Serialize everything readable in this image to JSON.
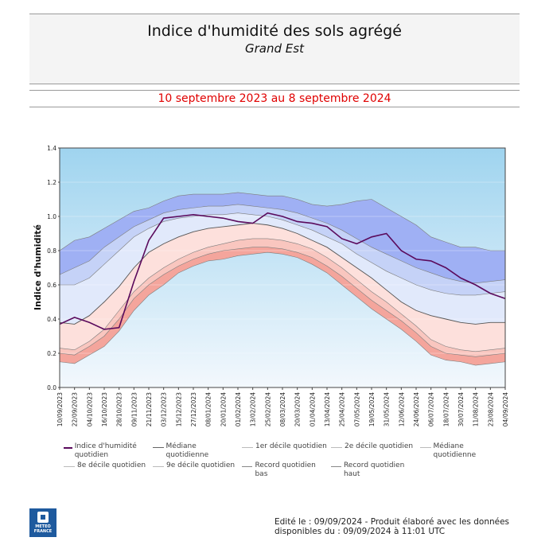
{
  "header": {
    "title": "Indice d'humidité des sols agrégé",
    "subtitle": "Grand Est",
    "period": "10 septembre 2023 au 8 septembre 2024"
  },
  "footer": {
    "line1": "Edité le : 09/09/2024 - Produit élaboré avec les données",
    "line2": "disponibles du : 09/09/2024 à 11:01 UTC"
  },
  "logo": {
    "text": "METEO FRANCE"
  },
  "colors": {
    "sky_top": "#9fd4ef",
    "sky_bottom": "#f2f7fc",
    "band_outer_blue": "#9fb0f4",
    "band_inner_blue": "#c5d2f7",
    "band_pale_blue": "#e1e9fb",
    "band_pale_red": "#fde0dc",
    "band_mid_red": "#f9c6bf",
    "band_outer_red": "#f4a59c",
    "index_line": "#5a0a5c",
    "decile_line": "#7d7d7d"
  },
  "legend": [
    {
      "label": "Indice d'humidité quotidien",
      "color": "#5a0a5c"
    },
    {
      "label": "Médiane quotidienne",
      "color": "#666666"
    },
    {
      "label": "1er décile quotidien",
      "color": "#bbbbbb"
    },
    {
      "label": "2e décile quotidien",
      "color": "#bbbbbb"
    },
    {
      "label": "Médiane quotidienne",
      "color": "#bbbbbb"
    },
    {
      "label": "8e décile quotidien",
      "color": "#bbbbbb"
    },
    {
      "label": "9e décile quotidien",
      "color": "#bbbbbb"
    },
    {
      "label": "Record quotidien bas",
      "color": "#888888"
    },
    {
      "label": "Record quotidien haut",
      "color": "#888888"
    }
  ],
  "chart_data": {
    "type": "area",
    "ylabel": "Indice d'humidité",
    "xlabel": "",
    "ylim": [
      0.0,
      1.4
    ],
    "yticks": [
      "0.0",
      "0.2",
      "0.4",
      "0.6",
      "0.8",
      "1.0",
      "1.2",
      "1.4"
    ],
    "x_tick_labels": [
      "10/09/2023",
      "22/09/2023",
      "04/10/2023",
      "16/10/2023",
      "28/10/2023",
      "09/11/2023",
      "21/11/2023",
      "03/12/2023",
      "15/12/2023",
      "27/12/2023",
      "08/01/2024",
      "20/01/2024",
      "01/02/2024",
      "13/02/2024",
      "25/02/2024",
      "08/03/2024",
      "20/03/2024",
      "01/04/2024",
      "13/04/2024",
      "25/04/2024",
      "07/05/2024",
      "19/05/2024",
      "31/05/2024",
      "12/06/2024",
      "24/06/2024",
      "06/07/2024",
      "18/07/2024",
      "30/07/2024",
      "11/08/2024",
      "23/08/2024",
      "04/09/2024"
    ],
    "grid": true,
    "x": [
      "10/09/2023",
      "22/09/2023",
      "04/10/2023",
      "16/10/2023",
      "28/10/2023",
      "09/11/2023",
      "21/11/2023",
      "03/12/2023",
      "15/12/2023",
      "27/12/2023",
      "08/01/2024",
      "20/01/2024",
      "01/02/2024",
      "13/02/2024",
      "25/02/2024",
      "08/03/2024",
      "20/03/2024",
      "01/04/2024",
      "13/04/2024",
      "25/04/2024",
      "07/05/2024",
      "19/05/2024",
      "31/05/2024",
      "12/06/2024",
      "24/06/2024",
      "06/07/2024",
      "18/07/2024",
      "30/07/2024",
      "11/08/2024",
      "23/08/2024",
      "04/09/2024"
    ],
    "series": [
      {
        "name": "Record quotidien bas",
        "values": [
          0.15,
          0.14,
          0.19,
          0.24,
          0.33,
          0.45,
          0.54,
          0.6,
          0.67,
          0.71,
          0.74,
          0.75,
          0.77,
          0.78,
          0.79,
          0.78,
          0.76,
          0.72,
          0.67,
          0.6,
          0.53,
          0.46,
          0.4,
          0.34,
          0.27,
          0.19,
          0.16,
          0.15,
          0.13,
          0.14,
          0.15
        ]
      },
      {
        "name": "1er décile quotidien",
        "values": [
          0.2,
          0.19,
          0.24,
          0.3,
          0.4,
          0.52,
          0.6,
          0.66,
          0.71,
          0.75,
          0.78,
          0.8,
          0.81,
          0.82,
          0.82,
          0.81,
          0.79,
          0.76,
          0.71,
          0.65,
          0.58,
          0.51,
          0.45,
          0.39,
          0.32,
          0.24,
          0.2,
          0.19,
          0.18,
          0.19,
          0.2
        ]
      },
      {
        "name": "2e décile quotidien",
        "values": [
          0.23,
          0.22,
          0.27,
          0.34,
          0.45,
          0.56,
          0.64,
          0.7,
          0.75,
          0.79,
          0.82,
          0.84,
          0.86,
          0.87,
          0.87,
          0.86,
          0.84,
          0.81,
          0.76,
          0.7,
          0.63,
          0.56,
          0.5,
          0.43,
          0.36,
          0.28,
          0.24,
          0.22,
          0.21,
          0.22,
          0.23
        ]
      },
      {
        "name": "Médiane quotidienne",
        "values": [
          0.38,
          0.37,
          0.42,
          0.5,
          0.59,
          0.7,
          0.79,
          0.84,
          0.88,
          0.91,
          0.93,
          0.94,
          0.95,
          0.96,
          0.95,
          0.93,
          0.9,
          0.86,
          0.82,
          0.76,
          0.7,
          0.64,
          0.57,
          0.5,
          0.45,
          0.42,
          0.4,
          0.38,
          0.37,
          0.38,
          0.38
        ]
      },
      {
        "name": "8e décile quotidien",
        "values": [
          0.6,
          0.6,
          0.64,
          0.72,
          0.8,
          0.88,
          0.93,
          0.97,
          0.99,
          1.0,
          1.01,
          1.01,
          1.02,
          1.01,
          1.0,
          0.98,
          0.95,
          0.92,
          0.88,
          0.84,
          0.78,
          0.73,
          0.68,
          0.64,
          0.6,
          0.57,
          0.55,
          0.54,
          0.54,
          0.55,
          0.56
        ]
      },
      {
        "name": "9e décile quotidien",
        "values": [
          0.66,
          0.7,
          0.74,
          0.82,
          0.88,
          0.94,
          0.98,
          1.02,
          1.04,
          1.05,
          1.06,
          1.06,
          1.07,
          1.06,
          1.05,
          1.04,
          1.02,
          0.99,
          0.96,
          0.92,
          0.87,
          0.82,
          0.78,
          0.74,
          0.7,
          0.67,
          0.64,
          0.62,
          0.61,
          0.62,
          0.63
        ]
      },
      {
        "name": "Record quotidien haut",
        "values": [
          0.8,
          0.86,
          0.88,
          0.93,
          0.98,
          1.03,
          1.05,
          1.09,
          1.12,
          1.13,
          1.13,
          1.13,
          1.14,
          1.13,
          1.12,
          1.12,
          1.1,
          1.07,
          1.06,
          1.07,
          1.09,
          1.1,
          1.05,
          1.0,
          0.95,
          0.88,
          0.85,
          0.82,
          0.82,
          0.8,
          0.8
        ]
      },
      {
        "name": "Indice d'humidité quotidien",
        "values": [
          0.37,
          0.41,
          0.38,
          0.34,
          0.35,
          0.62,
          0.86,
          0.99,
          1.0,
          1.01,
          1.0,
          0.99,
          0.97,
          0.96,
          1.02,
          1.0,
          0.97,
          0.96,
          0.94,
          0.87,
          0.84,
          0.88,
          0.9,
          0.8,
          0.75,
          0.74,
          0.7,
          0.64,
          0.6,
          0.55,
          0.52
        ]
      }
    ]
  }
}
